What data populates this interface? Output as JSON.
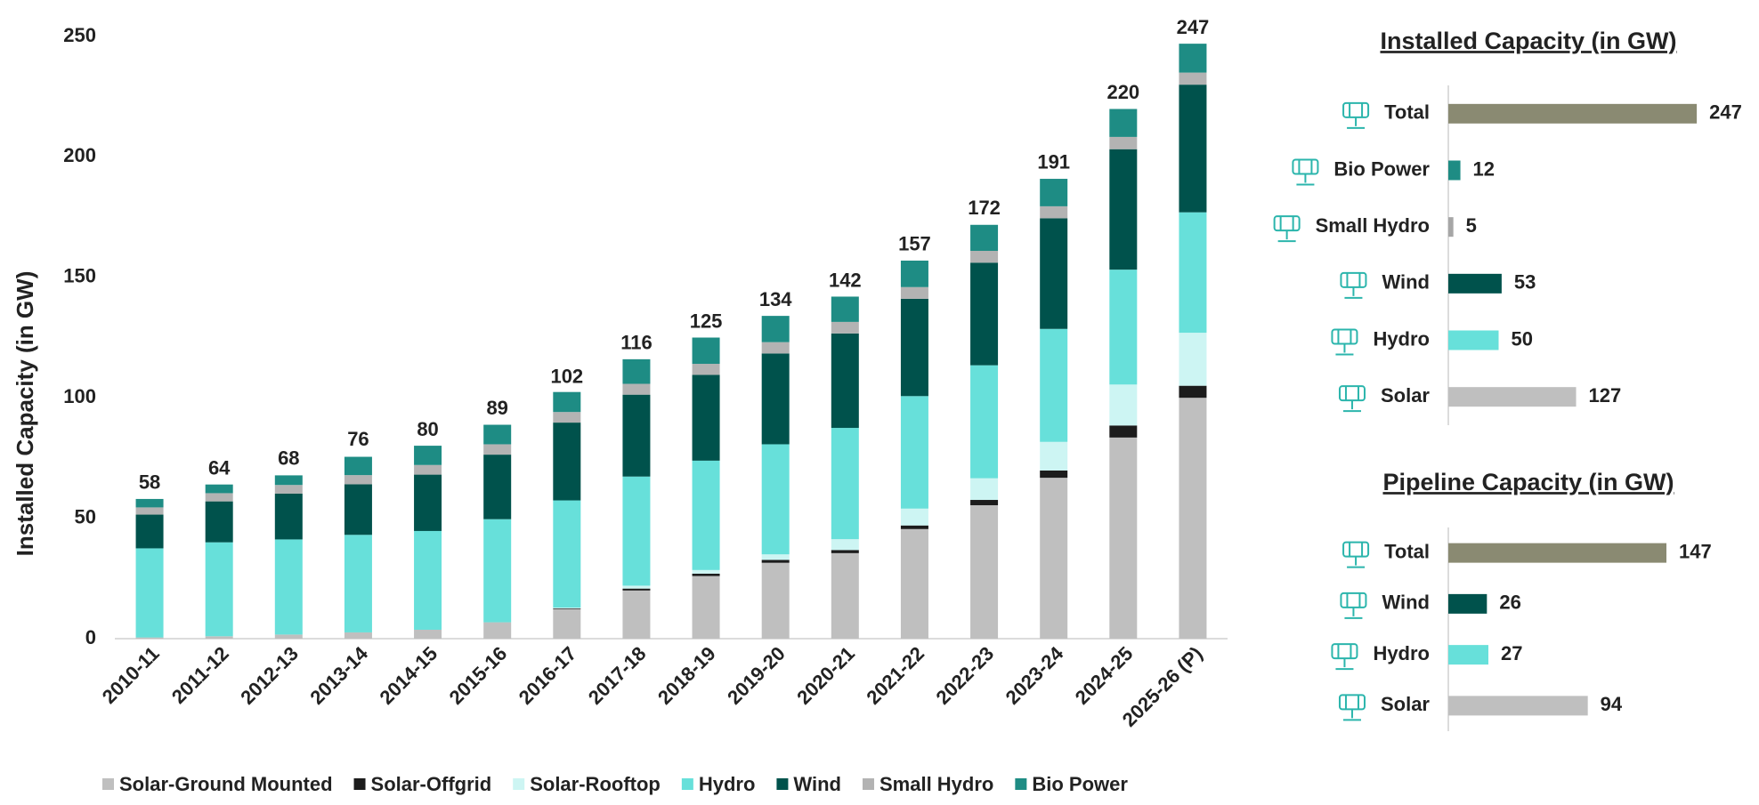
{
  "chart_data": [
    {
      "type": "bar",
      "stacked": true,
      "ylabel": "Installed Capacity (in GW)",
      "categories": [
        "2010-11",
        "2011-12",
        "2012-13",
        "2013-14",
        "2014-15",
        "2015-16",
        "2016-17",
        "2017-18",
        "2018-19",
        "2019-20",
        "2020-21",
        "2021-22",
        "2022-23",
        "2023-24",
        "2024-25",
        "2025-26 (P)"
      ],
      "series": [
        {
          "name": "Solar-Ground Mounted",
          "color": "#bfbfbf",
          "values": [
            0.5,
            1,
            1.7,
            2.6,
            3.7,
            6.8,
            12.3,
            20,
            26,
            31.5,
            35.5,
            45.5,
            55.4,
            66.8,
            83.5,
            100
          ]
        },
        {
          "name": "Solar-Offgrid",
          "color": "#1c1c1c",
          "values": [
            0,
            0,
            0,
            0,
            0,
            0,
            0.3,
            0.8,
            1,
            1.2,
            1.3,
            1.5,
            2.2,
            3,
            5,
            5
          ]
        },
        {
          "name": "Solar-Rooftop",
          "color": "#cdf5f3",
          "values": [
            0,
            0,
            0,
            0,
            0,
            0,
            0.3,
            1.2,
            1.5,
            2.3,
            4.5,
            7,
            9,
            11.9,
            17,
            22
          ]
        },
        {
          "name": "Hydro",
          "color": "#67e0da",
          "values": [
            37,
            39,
            39.5,
            40.5,
            41,
            42.8,
            44.5,
            45.3,
            45.4,
            45.7,
            46.2,
            46.7,
            46.9,
            46.9,
            47.7,
            50
          ]
        },
        {
          "name": "Wind",
          "color": "#00524c",
          "values": [
            14,
            17,
            19,
            21,
            23.4,
            26.8,
            32.3,
            34,
            35.6,
            37.7,
            39.2,
            40.4,
            42.6,
            45.9,
            50,
            53
          ]
        },
        {
          "name": "Small Hydro",
          "color": "#b3b3b3",
          "values": [
            3,
            3.4,
            3.6,
            3.8,
            4,
            4.3,
            4.4,
            4.5,
            4.6,
            4.7,
            4.8,
            4.85,
            4.9,
            5,
            5.1,
            5
          ]
        },
        {
          "name": "Bio Power",
          "color": "#1e8c84",
          "values": [
            3.5,
            3.6,
            4,
            7.6,
            8,
            8.1,
            8.3,
            10.2,
            10.9,
            10.9,
            10.5,
            11,
            10.8,
            11.4,
            11.6,
            12
          ]
        }
      ],
      "totals": [
        58,
        64,
        68,
        76,
        80,
        89,
        102,
        116,
        125,
        134,
        142,
        157,
        172,
        191,
        220,
        247
      ],
      "ylim": [
        0,
        250
      ],
      "yticks": [
        0,
        50,
        100,
        150,
        200,
        250
      ]
    },
    {
      "type": "barh",
      "title": "Installed Capacity (in GW)",
      "categories": [
        "Total",
        "Bio Power",
        "Small Hydro",
        "Wind",
        "Hydro",
        "Solar"
      ],
      "values": [
        247,
        12,
        5,
        53,
        50,
        127
      ],
      "colors": [
        "#8a8a72",
        "#1e8c84",
        "#a6a6a6",
        "#00524c",
        "#67e0da",
        "#bfbfbf"
      ],
      "xlim": [
        0,
        300
      ]
    },
    {
      "type": "barh",
      "title": "Pipeline Capacity (in GW)",
      "categories": [
        "Total",
        "Wind",
        "Hydro",
        "Solar"
      ],
      "values": [
        147,
        26,
        27,
        94
      ],
      "colors": [
        "#8a8a72",
        "#00524c",
        "#67e0da",
        "#bfbfbf"
      ],
      "xlim": [
        0,
        150
      ]
    }
  ]
}
